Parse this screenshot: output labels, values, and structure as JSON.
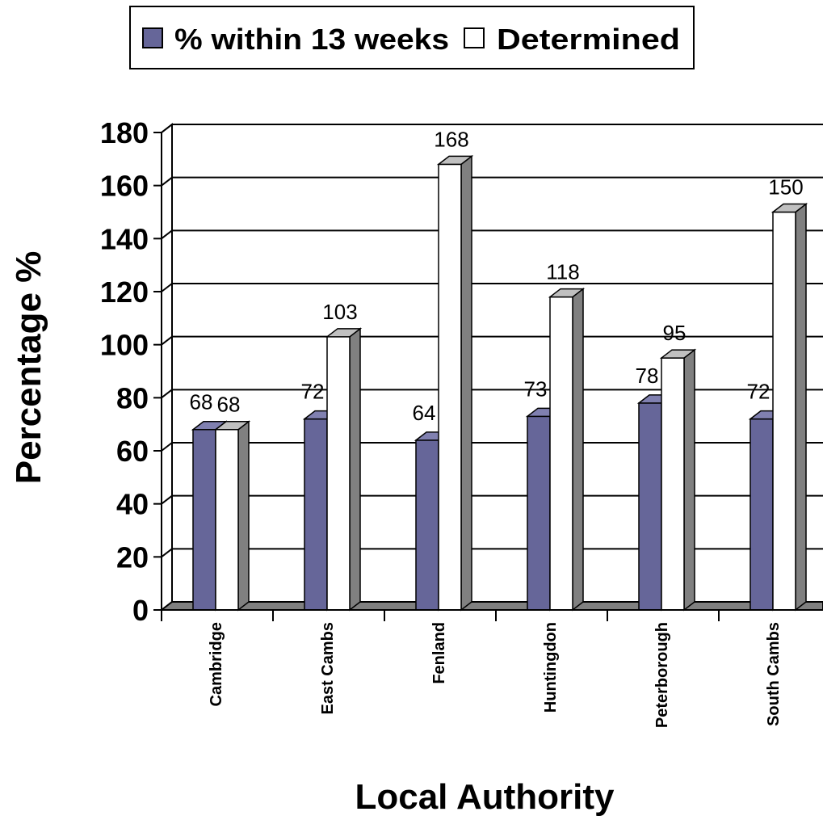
{
  "chart_data": {
    "type": "bar",
    "title": "",
    "xlabel": "Local Authority",
    "ylabel": "Percentage %",
    "categories": [
      "Cambridge",
      "East Cambs",
      "Fenland",
      "Huntingdon",
      "Peterborough",
      "South Cambs"
    ],
    "series": [
      {
        "name": "% within 13 weeks",
        "values": [
          68,
          72,
          64,
          73,
          78,
          72
        ],
        "color": "#666699"
      },
      {
        "name": "Determined",
        "values": [
          68,
          103,
          168,
          118,
          95,
          150
        ],
        "color": "#ffffff"
      }
    ],
    "yticks": [
      "0",
      "20",
      "40",
      "60",
      "80",
      "100",
      "120",
      "140",
      "160",
      "180"
    ],
    "ylim": [
      0,
      180
    ],
    "grid": true,
    "legend_position": "top",
    "style": "3d-clustered-column",
    "colors": {
      "wall_side": "#808080",
      "floor": "#808080",
      "bar_top": "#c0c0c0"
    }
  }
}
